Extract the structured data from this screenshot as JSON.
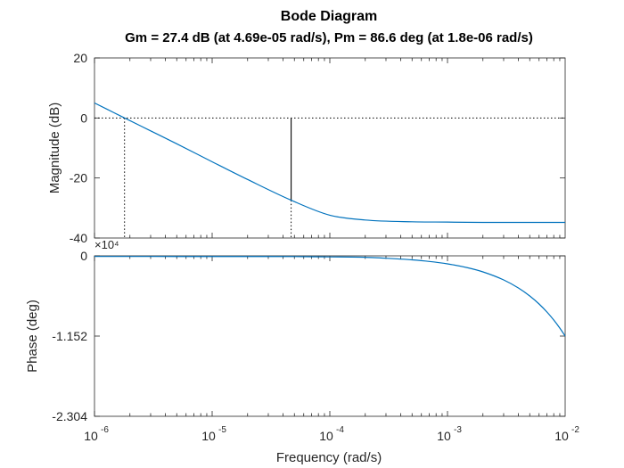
{
  "chart_data": [
    {
      "type": "line",
      "title": "Bode Diagram",
      "subtitle": "Gm = 27.4 dB (at 4.69e-05 rad/s),  Pm = 86.6 deg (at 1.8e-06 rad/s)",
      "xlabel": "Frequency  (rad/s)",
      "ylabel": "Magnitude (dB)",
      "xscale": "log",
      "xlim": [
        1e-06,
        0.01
      ],
      "ylim": [
        -40,
        20
      ],
      "yticks": [
        "20",
        "0",
        "-20",
        "-40"
      ],
      "grid": false,
      "series": [
        {
          "color": "#0072BD",
          "x": [
            1e-06,
            1.8e-06,
            3e-06,
            5e-06,
            1e-05,
            2e-05,
            4.69e-05,
            0.0001,
            0.0002,
            0.0005,
            0.001,
            0.002,
            0.005,
            0.01
          ],
          "y": [
            5,
            0,
            -4.3,
            -8.6,
            -14.6,
            -20.5,
            -27.4,
            -32.4,
            -34.0,
            -34.6,
            -34.7,
            -34.8,
            -34.8,
            -34.8
          ]
        }
      ],
      "annotations": {
        "reference_line_db": 0,
        "phase_margin_frequency": 1.8e-06,
        "gain_margin_frequency": 4.69e-05,
        "gain_margin_db": 27.4
      }
    },
    {
      "type": "line",
      "xlabel": "Frequency  (rad/s)",
      "ylabel": "Phase (deg)",
      "xscale": "log",
      "xlim": [
        1e-06,
        0.01
      ],
      "ylim": [
        -23040,
        0
      ],
      "yticks": [
        "0",
        "-1.152",
        "-2.304"
      ],
      "yexponent": "×10⁴",
      "xticks_base": "10",
      "xticks_exp": [
        "-6",
        "-5",
        "-4",
        "-3",
        "-2"
      ],
      "grid": false,
      "series": [
        {
          "color": "#0072BD",
          "x": [
            1e-06,
            2e-06,
            5e-06,
            1e-05,
            2e-05,
            5e-05,
            0.0001,
            0.0002,
            0.0003,
            0.0005,
            0.0007,
            0.001,
            0.0015,
            0.002,
            0.003,
            0.004,
            0.005,
            0.006,
            0.007,
            0.008,
            0.009,
            0.01
          ],
          "y": [
            -90,
            -91,
            -92,
            -94,
            -95,
            -106,
            -153,
            -210,
            -345,
            -577,
            -806,
            -1152,
            -1728,
            -2304,
            -3456,
            -4608,
            -5760,
            -6912,
            -8064,
            -9216,
            -10368,
            -11520
          ]
        }
      ]
    }
  ]
}
